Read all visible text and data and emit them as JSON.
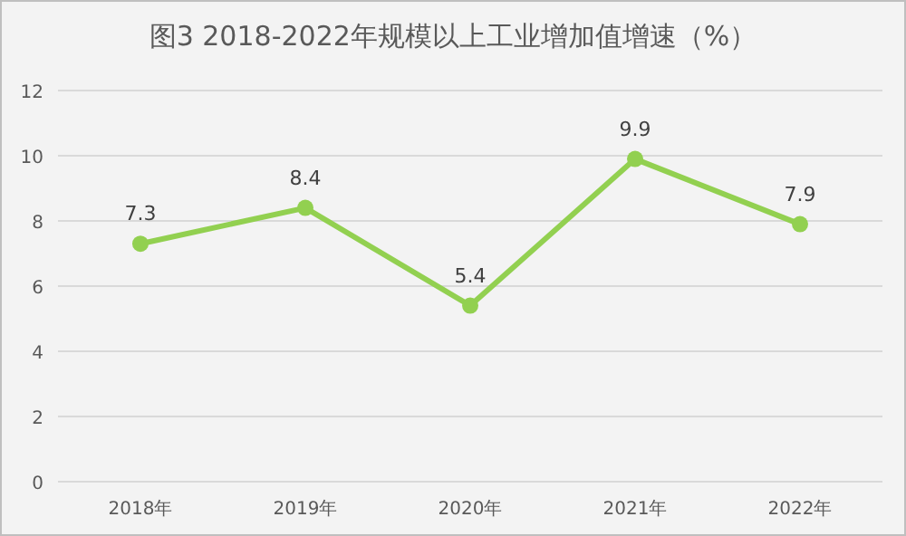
{
  "chart_data": {
    "type": "line",
    "title": "图3  2018-2022年规模以上工业增加值增速（%）",
    "categories": [
      "2018年",
      "2019年",
      "2020年",
      "2021年",
      "2022年"
    ],
    "series": [
      {
        "color": "#92d050",
        "values": [
          7.3,
          8.4,
          5.4,
          9.9,
          7.9
        ]
      }
    ],
    "ylim": [
      0,
      12
    ],
    "yticks": [
      0,
      2,
      4,
      6,
      8,
      10,
      12
    ],
    "grid": "y",
    "marker": "circle",
    "data_labels": true
  }
}
